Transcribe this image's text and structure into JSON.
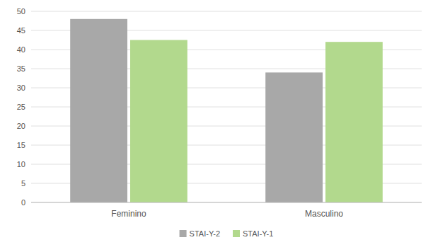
{
  "chart_data": {
    "type": "bar",
    "categories": [
      "Feminino",
      "Masculino"
    ],
    "series": [
      {
        "name": "STAI-Y-2",
        "color": "#a8a8a8",
        "values": [
          48,
          34
        ]
      },
      {
        "name": "STAI-Y-1",
        "color": "#b2d98d",
        "values": [
          42.5,
          42
        ]
      }
    ],
    "ylim": [
      0,
      50
    ],
    "yticks": [
      0,
      5,
      10,
      15,
      20,
      25,
      30,
      35,
      40,
      45,
      50
    ],
    "grid": true,
    "legend": "bottom"
  }
}
